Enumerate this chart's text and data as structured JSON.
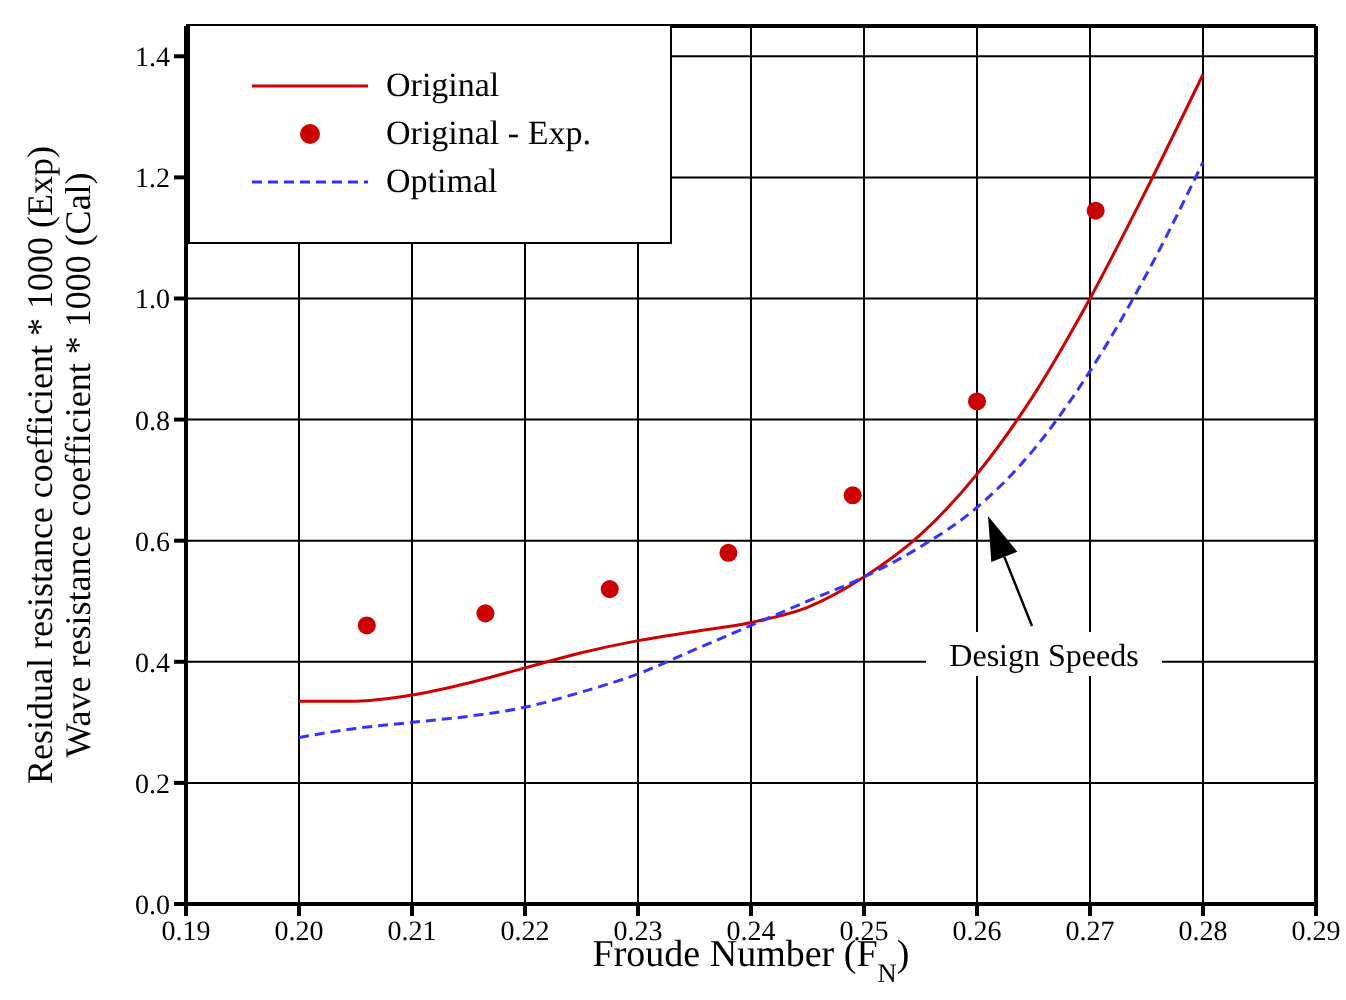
{
  "chart_data": {
    "type": "line",
    "xlabel": "Froude Number (F$_{N}$)",
    "ylabel": "Residual resistance coefficient * 1000 (Exp)\nWave resistance coefficient * 1000 (Cal)",
    "xlim": [
      0.19,
      0.29
    ],
    "xticks": [
      0.19,
      {
        "value": 0.2,
        "label": "0.20"
      },
      0.21,
      0.22,
      0.23,
      0.24,
      0.25,
      0.26,
      0.27,
      0.28,
      0.29
    ],
    "ylim": [
      0,
      1.45
    ],
    "yticks": [
      {
        "value": 0,
        "label": "0.0"
      },
      {
        "value": 0.2,
        "label": "0.2"
      },
      {
        "value": 0.4,
        "label": "0.4"
      },
      {
        "value": 0.6,
        "label": "0.6"
      },
      {
        "value": 0.8,
        "label": "0.8"
      },
      {
        "value": 1,
        "label": "1.0"
      },
      {
        "value": 1.2,
        "label": "1.2"
      },
      {
        "value": 1.4,
        "label": "1.4"
      }
    ],
    "grid": true,
    "legend": "top left",
    "series": [
      {
        "name": "Original",
        "color": "#cc0000",
        "line_style": "solid",
        "marker": "none",
        "x": [
          0.2,
          0.205,
          0.21,
          0.215,
          0.22,
          0.225,
          0.23,
          0.235,
          0.24,
          0.245,
          0.25,
          0.255,
          0.26,
          0.265,
          0.27,
          0.275,
          0.28
        ],
        "values": [
          0.335,
          0.335,
          0.345,
          0.365,
          0.39,
          0.415,
          0.435,
          0.45,
          0.465,
          0.49,
          0.54,
          0.61,
          0.71,
          0.84,
          1.0,
          1.18,
          1.37
        ]
      },
      {
        "name": "Original - Exp.",
        "type": "scatter",
        "color": "#cc0000",
        "marker": "circle",
        "x": [
          0.206,
          0.2165,
          0.2275,
          0.238,
          0.249,
          0.26,
          0.2705
        ],
        "values": [
          0.46,
          0.48,
          0.52,
          0.58,
          0.675,
          0.83,
          1.145
        ]
      },
      {
        "name": "Optimal",
        "color": "#3333ff",
        "line_style": "dashed",
        "marker": "none",
        "x": [
          0.2,
          0.205,
          0.21,
          0.215,
          0.22,
          0.225,
          0.23,
          0.235,
          0.24,
          0.245,
          0.25,
          0.255,
          0.26,
          0.265,
          0.27,
          0.275,
          0.28
        ],
        "values": [
          0.275,
          0.29,
          0.3,
          0.31,
          0.325,
          0.35,
          0.38,
          0.42,
          0.46,
          0.5,
          0.54,
          0.59,
          0.655,
          0.75,
          0.88,
          1.04,
          1.225
        ]
      }
    ],
    "annotations": [
      "Design Speeds"
    ]
  }
}
